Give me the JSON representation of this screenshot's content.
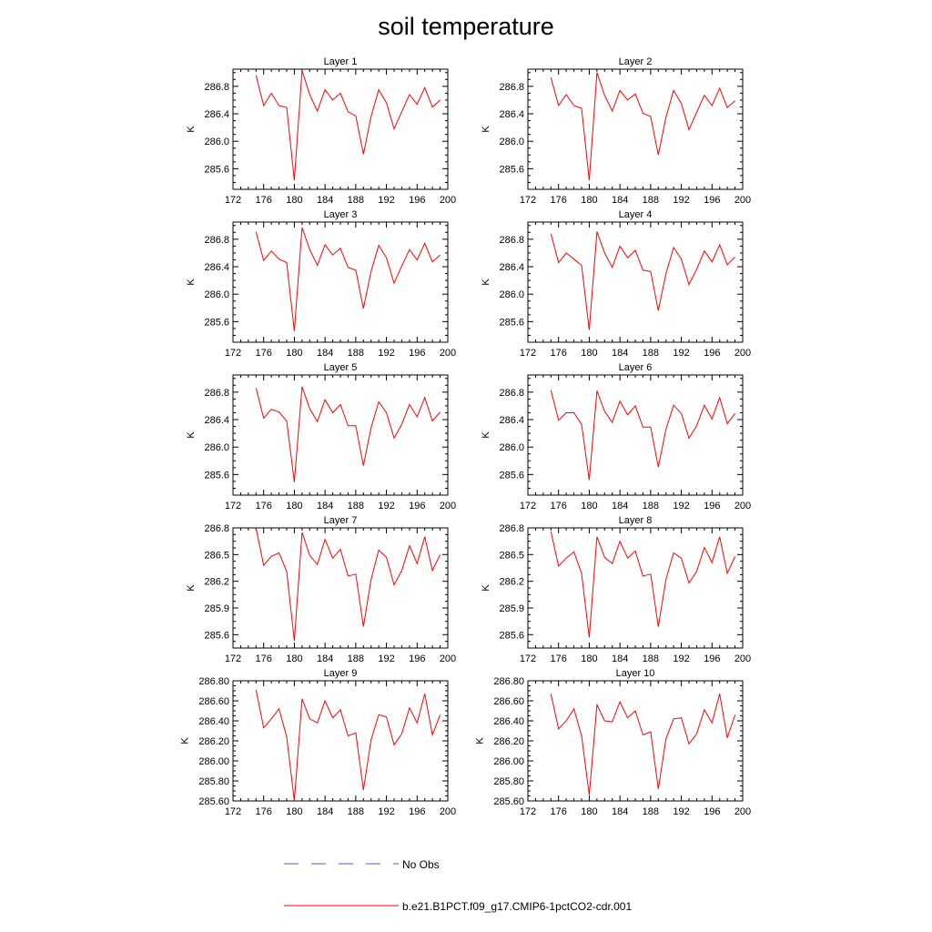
{
  "title": "soil temperature",
  "colors": {
    "model_line": "#ff0000",
    "obs_line": "#5555cc",
    "axis": "#000000"
  },
  "legend": {
    "items": [
      {
        "label": "No Obs",
        "style": "dashed",
        "color": "#5555cc"
      },
      {
        "label": "b.e21.B1PCT.f09_g17.CMIP6-1pctCO2-cdr.001",
        "style": "solid",
        "color": "#ff0000"
      }
    ]
  },
  "chart_data": [
    {
      "type": "line",
      "title": "Layer 1",
      "ylabel": "K",
      "xlim": [
        172,
        200
      ],
      "ylim": [
        285.3,
        287.05
      ],
      "xticks": [
        "172",
        "176",
        "180",
        "184",
        "188",
        "192",
        "196",
        "200"
      ],
      "yticks": [
        "285.6",
        "286.0",
        "286.4",
        "286.8"
      ],
      "x": [
        175,
        176,
        177,
        178,
        179,
        180,
        181,
        182,
        183,
        184,
        185,
        186,
        187,
        188,
        189,
        190,
        191,
        192,
        193,
        194,
        195,
        196,
        197,
        198,
        199
      ],
      "series": [
        {
          "name": "b.e21.B1PCT.f09_g17.CMIP6-1pctCO2-cdr.001",
          "values": [
            286.96,
            286.52,
            286.7,
            286.52,
            286.49,
            285.43,
            287.03,
            286.68,
            286.44,
            286.75,
            286.6,
            286.7,
            286.43,
            286.37,
            285.81,
            286.36,
            286.75,
            286.56,
            286.18,
            286.43,
            286.68,
            286.54,
            286.78,
            286.5,
            286.6
          ]
        }
      ]
    },
    {
      "type": "line",
      "title": "Layer 2",
      "ylabel": "K",
      "xlim": [
        172,
        200
      ],
      "ylim": [
        285.3,
        287.05
      ],
      "xticks": [
        "172",
        "176",
        "180",
        "184",
        "188",
        "192",
        "196",
        "200"
      ],
      "yticks": [
        "285.6",
        "286.0",
        "286.4",
        "286.8"
      ],
      "x": [
        175,
        176,
        177,
        178,
        179,
        180,
        181,
        182,
        183,
        184,
        185,
        186,
        187,
        188,
        189,
        190,
        191,
        192,
        193,
        194,
        195,
        196,
        197,
        198,
        199
      ],
      "series": [
        {
          "name": "b.e21.B1PCT.f09_g17.CMIP6-1pctCO2-cdr.001",
          "values": [
            286.93,
            286.52,
            286.68,
            286.52,
            286.48,
            285.43,
            287.0,
            286.67,
            286.44,
            286.74,
            286.6,
            286.69,
            286.41,
            286.36,
            285.8,
            286.35,
            286.74,
            286.55,
            286.17,
            286.42,
            286.67,
            286.52,
            286.77,
            286.49,
            286.59
          ]
        }
      ]
    },
    {
      "type": "line",
      "title": "Layer 3",
      "ylabel": "K",
      "xlim": [
        172,
        200
      ],
      "ylim": [
        285.3,
        287.05
      ],
      "xticks": [
        "172",
        "176",
        "180",
        "184",
        "188",
        "192",
        "196",
        "200"
      ],
      "yticks": [
        "285.6",
        "286.0",
        "286.4",
        "286.8"
      ],
      "x": [
        175,
        176,
        177,
        178,
        179,
        180,
        181,
        182,
        183,
        184,
        185,
        186,
        187,
        188,
        189,
        190,
        191,
        192,
        193,
        194,
        195,
        196,
        197,
        198,
        199
      ],
      "series": [
        {
          "name": "b.e21.B1PCT.f09_g17.CMIP6-1pctCO2-cdr.001",
          "values": [
            286.91,
            286.49,
            286.63,
            286.51,
            286.46,
            285.46,
            286.97,
            286.65,
            286.42,
            286.72,
            286.57,
            286.67,
            286.39,
            286.35,
            285.79,
            286.33,
            286.71,
            286.53,
            286.16,
            286.41,
            286.65,
            286.5,
            286.74,
            286.47,
            286.57
          ]
        }
      ]
    },
    {
      "type": "line",
      "title": "Layer 4",
      "ylabel": "K",
      "xlim": [
        172,
        200
      ],
      "ylim": [
        285.3,
        287.05
      ],
      "xticks": [
        "172",
        "176",
        "180",
        "184",
        "188",
        "192",
        "196",
        "200"
      ],
      "yticks": [
        "285.6",
        "286.0",
        "286.4",
        "286.8"
      ],
      "x": [
        175,
        176,
        177,
        178,
        179,
        180,
        181,
        182,
        183,
        184,
        185,
        186,
        187,
        188,
        189,
        190,
        191,
        192,
        193,
        194,
        195,
        196,
        197,
        198,
        199
      ],
      "series": [
        {
          "name": "b.e21.B1PCT.f09_g17.CMIP6-1pctCO2-cdr.001",
          "values": [
            286.88,
            286.46,
            286.6,
            286.51,
            286.42,
            285.48,
            286.91,
            286.6,
            286.39,
            286.7,
            286.53,
            286.64,
            286.35,
            286.33,
            285.76,
            286.3,
            286.68,
            286.51,
            286.14,
            286.36,
            286.63,
            286.47,
            286.72,
            286.43,
            286.54
          ]
        }
      ]
    },
    {
      "type": "line",
      "title": "Layer 5",
      "ylabel": "K",
      "xlim": [
        172,
        200
      ],
      "ylim": [
        285.3,
        287.05
      ],
      "xticks": [
        "172",
        "176",
        "180",
        "184",
        "188",
        "192",
        "196",
        "200"
      ],
      "yticks": [
        "285.6",
        "286.0",
        "286.4",
        "286.8"
      ],
      "x": [
        175,
        176,
        177,
        178,
        179,
        180,
        181,
        182,
        183,
        184,
        185,
        186,
        187,
        188,
        189,
        190,
        191,
        192,
        193,
        194,
        195,
        196,
        197,
        198,
        199
      ],
      "series": [
        {
          "name": "b.e21.B1PCT.f09_g17.CMIP6-1pctCO2-cdr.001",
          "values": [
            286.86,
            286.42,
            286.55,
            286.51,
            286.38,
            285.49,
            286.88,
            286.56,
            286.37,
            286.69,
            286.5,
            286.62,
            286.31,
            286.31,
            285.73,
            286.28,
            286.66,
            286.5,
            286.13,
            286.33,
            286.62,
            286.44,
            286.72,
            286.38,
            286.51
          ]
        }
      ]
    },
    {
      "type": "line",
      "title": "Layer 6",
      "ylabel": "K",
      "xlim": [
        172,
        200
      ],
      "ylim": [
        285.3,
        287.05
      ],
      "xticks": [
        "172",
        "176",
        "180",
        "184",
        "188",
        "192",
        "196",
        "200"
      ],
      "yticks": [
        "285.6",
        "286.0",
        "286.4",
        "286.8"
      ],
      "x": [
        175,
        176,
        177,
        178,
        179,
        180,
        181,
        182,
        183,
        184,
        185,
        186,
        187,
        188,
        189,
        190,
        191,
        192,
        193,
        194,
        195,
        196,
        197,
        198,
        199
      ],
      "series": [
        {
          "name": "b.e21.B1PCT.f09_g17.CMIP6-1pctCO2-cdr.001",
          "values": [
            286.83,
            286.39,
            286.5,
            286.5,
            286.33,
            285.52,
            286.82,
            286.52,
            286.36,
            286.67,
            286.47,
            286.6,
            286.29,
            286.29,
            285.71,
            286.26,
            286.61,
            286.49,
            286.13,
            286.31,
            286.61,
            286.41,
            286.72,
            286.34,
            286.49
          ]
        }
      ]
    },
    {
      "type": "line",
      "title": "Layer 7",
      "ylabel": "K",
      "xlim": [
        172,
        200
      ],
      "ylim": [
        285.45,
        286.8
      ],
      "xticks": [
        "172",
        "176",
        "180",
        "184",
        "188",
        "192",
        "196",
        "200"
      ],
      "yticks": [
        "285.6",
        "285.9",
        "286.2",
        "286.5",
        "286.8"
      ],
      "x": [
        175,
        176,
        177,
        178,
        179,
        180,
        181,
        182,
        183,
        184,
        185,
        186,
        187,
        188,
        189,
        190,
        191,
        192,
        193,
        194,
        195,
        196,
        197,
        198,
        199
      ],
      "series": [
        {
          "name": "b.e21.B1PCT.f09_g17.CMIP6-1pctCO2-cdr.001",
          "values": [
            286.8,
            286.38,
            286.48,
            286.52,
            286.31,
            285.53,
            286.75,
            286.49,
            286.39,
            286.67,
            286.46,
            286.56,
            286.26,
            286.28,
            285.69,
            286.22,
            286.55,
            286.47,
            286.16,
            286.32,
            286.6,
            286.4,
            286.7,
            286.32,
            286.5
          ]
        }
      ]
    },
    {
      "type": "line",
      "title": "Layer 8",
      "ylabel": "K",
      "xlim": [
        172,
        200
      ],
      "ylim": [
        285.45,
        286.8
      ],
      "xticks": [
        "172",
        "176",
        "180",
        "184",
        "188",
        "192",
        "196",
        "200"
      ],
      "yticks": [
        "285.6",
        "285.9",
        "286.2",
        "286.5",
        "286.8"
      ],
      "x": [
        175,
        176,
        177,
        178,
        179,
        180,
        181,
        182,
        183,
        184,
        185,
        186,
        187,
        188,
        189,
        190,
        191,
        192,
        193,
        194,
        195,
        196,
        197,
        198,
        199
      ],
      "series": [
        {
          "name": "b.e21.B1PCT.f09_g17.CMIP6-1pctCO2-cdr.001",
          "values": [
            286.76,
            286.37,
            286.46,
            286.53,
            286.29,
            285.57,
            286.7,
            286.47,
            286.4,
            286.65,
            286.46,
            286.54,
            286.26,
            286.28,
            285.69,
            286.22,
            286.52,
            286.46,
            286.18,
            286.31,
            286.58,
            286.41,
            286.7,
            286.29,
            286.48
          ]
        }
      ]
    },
    {
      "type": "line",
      "title": "Layer 9",
      "ylabel": "K",
      "xlim": [
        172,
        200
      ],
      "ylim": [
        285.6,
        286.8
      ],
      "xticks": [
        "172",
        "176",
        "180",
        "184",
        "188",
        "192",
        "196",
        "200"
      ],
      "yticks": [
        "285.60",
        "285.80",
        "286.00",
        "286.20",
        "286.40",
        "286.60",
        "286.80"
      ],
      "x": [
        175,
        176,
        177,
        178,
        179,
        180,
        181,
        182,
        183,
        184,
        185,
        186,
        187,
        188,
        189,
        190,
        191,
        192,
        193,
        194,
        195,
        196,
        197,
        198,
        199
      ],
      "series": [
        {
          "name": "b.e21.B1PCT.f09_g17.CMIP6-1pctCO2-cdr.001",
          "values": [
            286.71,
            286.33,
            286.42,
            286.52,
            286.24,
            285.6,
            286.62,
            286.42,
            286.38,
            286.6,
            286.43,
            286.51,
            286.25,
            286.28,
            285.71,
            286.21,
            286.46,
            286.44,
            286.16,
            286.27,
            286.53,
            286.38,
            286.67,
            286.26,
            286.46
          ]
        }
      ]
    },
    {
      "type": "line",
      "title": "Layer 10",
      "ylabel": "K",
      "xlim": [
        172,
        200
      ],
      "ylim": [
        285.6,
        286.8
      ],
      "xticks": [
        "172",
        "176",
        "180",
        "184",
        "188",
        "192",
        "196",
        "200"
      ],
      "yticks": [
        "285.60",
        "285.80",
        "286.00",
        "286.20",
        "286.40",
        "286.60",
        "286.80"
      ],
      "x": [
        175,
        176,
        177,
        178,
        179,
        180,
        181,
        182,
        183,
        184,
        185,
        186,
        187,
        188,
        189,
        190,
        191,
        192,
        193,
        194,
        195,
        196,
        197,
        198,
        199
      ],
      "series": [
        {
          "name": "b.e21.B1PCT.f09_g17.CMIP6-1pctCO2-cdr.001",
          "values": [
            286.67,
            286.32,
            286.4,
            286.52,
            286.25,
            285.66,
            286.56,
            286.4,
            286.39,
            286.59,
            286.43,
            286.5,
            286.26,
            286.29,
            285.72,
            286.22,
            286.42,
            286.43,
            286.17,
            286.27,
            286.51,
            286.38,
            286.67,
            286.23,
            286.46
          ]
        }
      ]
    }
  ]
}
